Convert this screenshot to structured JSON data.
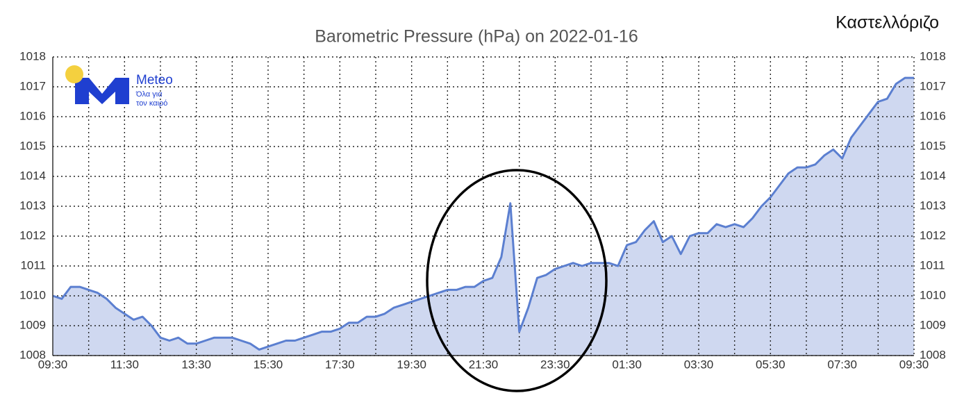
{
  "chart_data": {
    "type": "area",
    "title": "Barometric Pressure (hPa) on 2022-01-16",
    "location": "Καστελλόριζο",
    "logo": {
      "name": "Meteo",
      "tagline_1": "Όλα για",
      "tagline_2": "τον καιρό"
    },
    "categories": [
      "09:30",
      null,
      null,
      null,
      null,
      null,
      null,
      null,
      "11:30",
      null,
      null,
      null,
      null,
      null,
      null,
      null,
      "13:30",
      null,
      null,
      null,
      null,
      null,
      null,
      null,
      "15:30",
      null,
      null,
      null,
      null,
      null,
      null,
      null,
      "17:30",
      null,
      null,
      null,
      null,
      null,
      null,
      null,
      "19:30",
      null,
      null,
      null,
      null,
      null,
      null,
      null,
      "21:30",
      null,
      null,
      null,
      null,
      null,
      null,
      null,
      "23:30",
      null,
      null,
      null,
      null,
      null,
      null,
      null,
      "01:30",
      null,
      null,
      null,
      null,
      null,
      null,
      null,
      "03:30",
      null,
      null,
      null,
      null,
      null,
      null,
      null,
      "05:30",
      null,
      null,
      null,
      null,
      null,
      null,
      null,
      "07:30",
      null,
      null,
      null,
      null,
      null,
      null,
      null,
      "09:30"
    ],
    "values": [
      1010.0,
      1009.9,
      1010.3,
      1010.3,
      1010.2,
      1010.1,
      1009.9,
      1009.6,
      1009.4,
      1009.2,
      1009.3,
      1009.0,
      1008.6,
      1008.5,
      1008.6,
      1008.4,
      1008.4,
      1008.5,
      1008.6,
      1008.6,
      1008.6,
      1008.5,
      1008.4,
      1008.2,
      1008.3,
      1008.4,
      1008.5,
      1008.5,
      1008.6,
      1008.7,
      1008.8,
      1008.8,
      1008.9,
      1009.1,
      1009.1,
      1009.3,
      1009.3,
      1009.4,
      1009.6,
      1009.7,
      1009.8,
      1009.9,
      1010.0,
      1010.1,
      1010.2,
      1010.2,
      1010.3,
      1010.3,
      1010.5,
      1010.6,
      1011.3,
      1013.1,
      1008.8,
      1009.6,
      1010.6,
      1010.7,
      1010.9,
      1011.0,
      1011.1,
      1011.0,
      1011.1,
      1011.1,
      1011.1,
      1011.0,
      1011.7,
      1011.8,
      1012.2,
      1012.5,
      1011.8,
      1012.0,
      1011.4,
      1012.0,
      1012.1,
      1012.1,
      1012.4,
      1012.3,
      1012.4,
      1012.3,
      1012.6,
      1013.0,
      1013.3,
      1013.7,
      1014.1,
      1014.3,
      1014.3,
      1014.4,
      1014.7,
      1014.9,
      1014.6,
      1015.3,
      1015.7,
      1016.1,
      1016.5,
      1016.6,
      1017.1,
      1017.3,
      1017.3
    ],
    "color": "#5b7fd0",
    "fill": "#cfd8f0",
    "ylim": [
      1008,
      1018
    ],
    "yticks": [
      1008,
      1009,
      1010,
      1011,
      1012,
      1013,
      1014,
      1015,
      1016,
      1017,
      1018
    ],
    "grid": true
  }
}
